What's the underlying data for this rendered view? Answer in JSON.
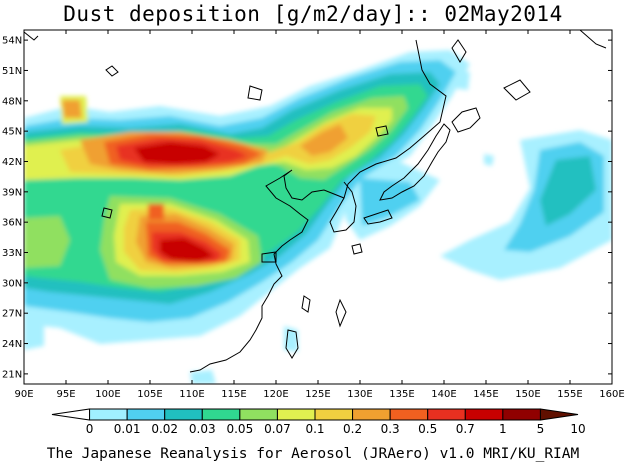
{
  "title": "Dust deposition [g/m2/day]:: 02May2014",
  "footer": "The Japanese Reanalysis for Aerosol (JRAero) v1.0 MRI/KU_RIAM",
  "map": {
    "lon_range": [
      90,
      160
    ],
    "lat_range": [
      20,
      55
    ],
    "lon_labels": [
      "90E",
      "95E",
      "100E",
      "105E",
      "110E",
      "115E",
      "120E",
      "125E",
      "130E",
      "135E",
      "140E",
      "145E",
      "150E",
      "155E",
      "160E"
    ],
    "lat_labels": [
      "21N",
      "24N",
      "27N",
      "30N",
      "33N",
      "36N",
      "39N",
      "42N",
      "45N",
      "48N",
      "51N",
      "54N"
    ]
  },
  "colorbar": {
    "labels": [
      "0",
      "0.01",
      "0.02",
      "0.03",
      "0.05",
      "0.07",
      "0.1",
      "0.2",
      "0.3",
      "0.5",
      "0.7",
      "1",
      "5",
      "10"
    ],
    "colors": [
      "#ffffff",
      "#a0f0ff",
      "#50d0f0",
      "#20c0c0",
      "#30d890",
      "#90e060",
      "#e0f050",
      "#f0d040",
      "#f0a030",
      "#f06020",
      "#e83020",
      "#c80000",
      "#900000",
      "#601000"
    ]
  }
}
